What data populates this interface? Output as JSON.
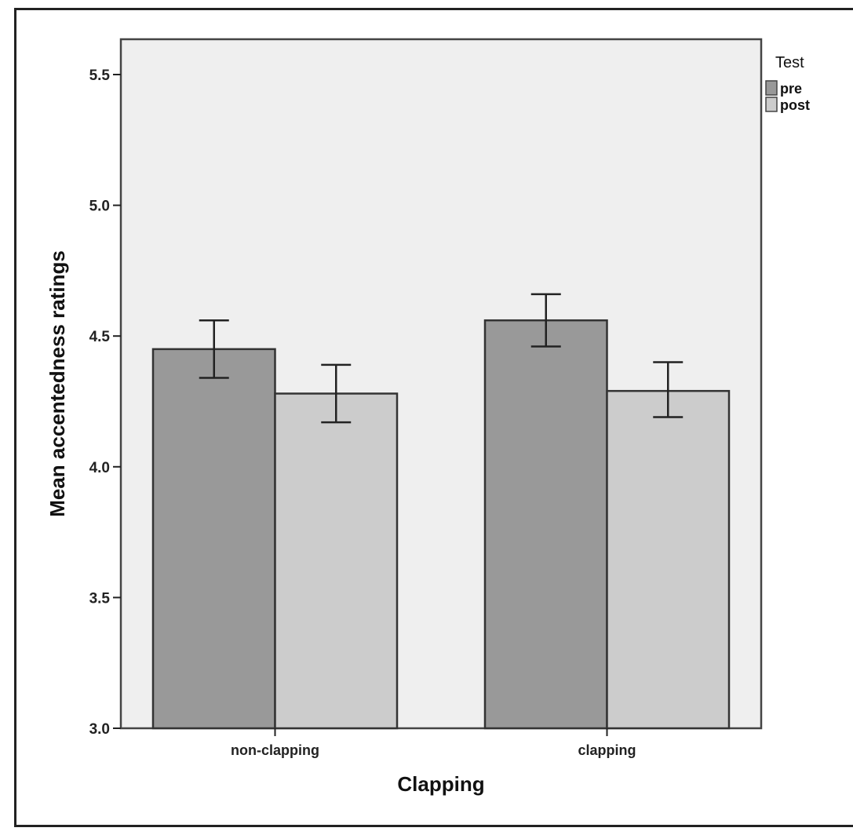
{
  "chart_data": {
    "type": "bar",
    "title": "",
    "xlabel": "Clapping",
    "ylabel": "Mean accentedness ratings",
    "ylim": [
      3.0,
      5.6
    ],
    "yticks": [
      "3.0",
      "3.5",
      "4.0",
      "4.5",
      "5.0",
      "5.5"
    ],
    "categories": [
      "non-clapping",
      "clapping"
    ],
    "legend": {
      "title": "Test",
      "position": "right",
      "entries": [
        "pre",
        "post"
      ]
    },
    "series": [
      {
        "name": "pre",
        "color": "#999999",
        "values": [
          4.45,
          4.56
        ],
        "error_low": [
          4.34,
          4.46
        ],
        "error_high": [
          4.56,
          4.66
        ]
      },
      {
        "name": "post",
        "color": "#cccccc",
        "values": [
          4.28,
          4.29
        ],
        "error_low": [
          4.17,
          4.19
        ],
        "error_high": [
          4.39,
          4.4
        ]
      }
    ],
    "grid": false,
    "plot_background": "#efefef"
  }
}
